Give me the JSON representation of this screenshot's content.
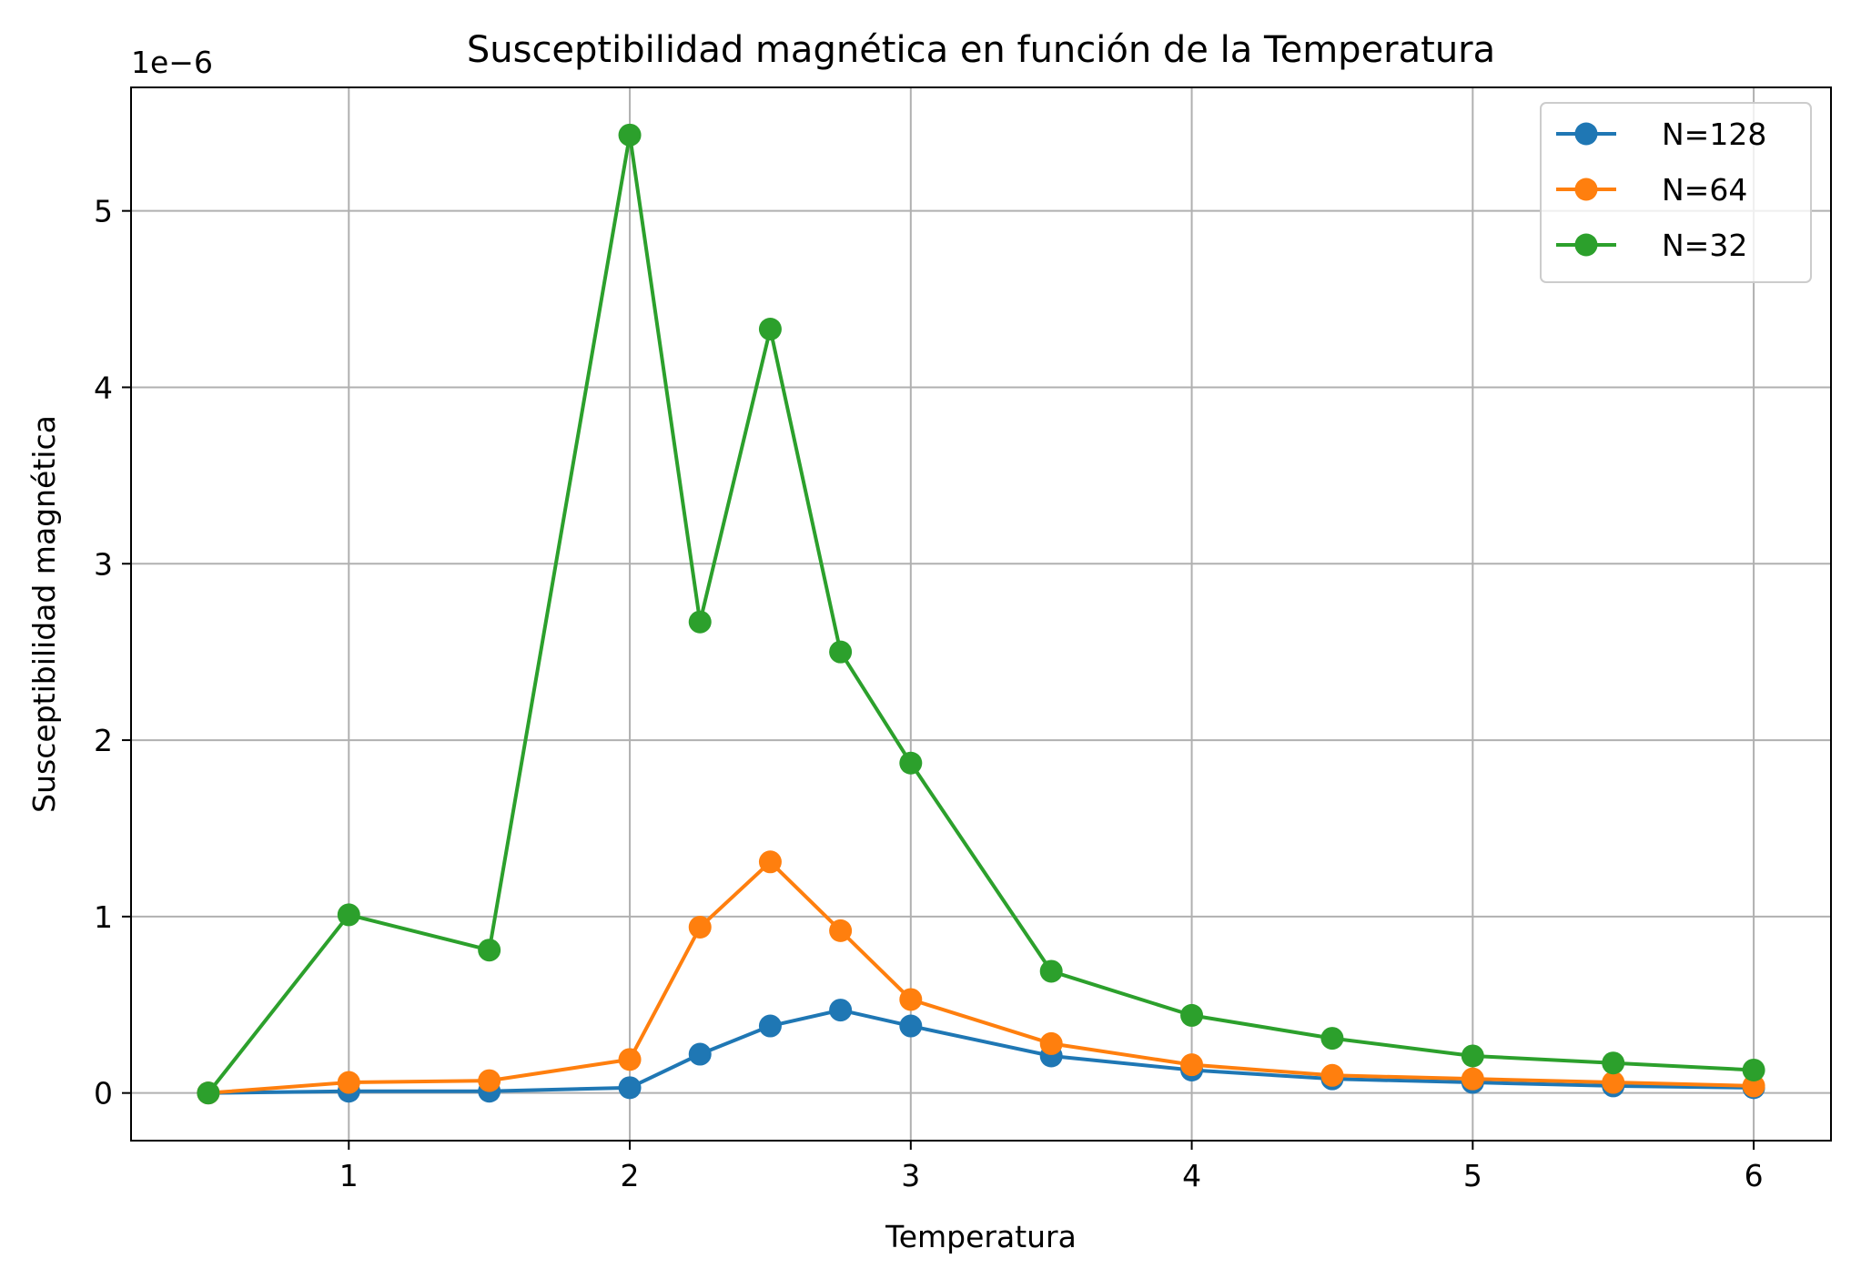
{
  "chart_data": {
    "type": "line",
    "title": "Susceptibilidad magnética en función de la Temperatura",
    "xlabel": "Temperatura",
    "ylabel": "Susceptibilidad magnética",
    "y_offset_label": "1e−6",
    "xlim": [
      0.225,
      6.275
    ],
    "ylim": [
      -0.27,
      5.7
    ],
    "xticks": [
      1,
      2,
      3,
      4,
      5,
      6
    ],
    "xtick_labels": [
      "1",
      "2",
      "3",
      "4",
      "5",
      "6"
    ],
    "yticks": [
      0,
      1,
      2,
      3,
      4,
      5
    ],
    "ytick_labels": [
      "0",
      "1",
      "2",
      "3",
      "4",
      "5"
    ],
    "grid": true,
    "legend_position": "top-right",
    "x": [
      0.5,
      1.0,
      1.5,
      2.0,
      2.25,
      2.5,
      2.75,
      3.0,
      3.5,
      4.0,
      4.5,
      5.0,
      5.5,
      6.0
    ],
    "series": [
      {
        "name": "N=128",
        "color": "#1f77b4",
        "values": [
          0.0,
          0.01,
          0.01,
          0.03,
          0.22,
          0.38,
          0.47,
          0.38,
          0.21,
          0.13,
          0.08,
          0.06,
          0.04,
          0.03
        ]
      },
      {
        "name": "N=64",
        "color": "#ff7f0e",
        "values": [
          0.0,
          0.06,
          0.07,
          0.19,
          0.94,
          1.31,
          0.92,
          0.53,
          0.28,
          0.16,
          0.1,
          0.08,
          0.06,
          0.04
        ]
      },
      {
        "name": "N=32",
        "color": "#2ca02c",
        "values": [
          0.0,
          1.01,
          0.81,
          5.43,
          2.67,
          4.33,
          2.5,
          1.87,
          0.69,
          0.44,
          0.31,
          0.21,
          0.17,
          0.13
        ]
      }
    ]
  }
}
